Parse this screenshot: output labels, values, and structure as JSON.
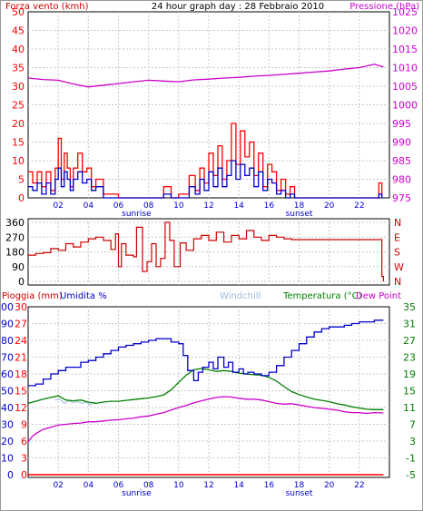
{
  "header": {
    "wind_label": "Forza vento (kmh)",
    "title": "24 hour graph day : 28 Febbraio 2010",
    "pressure_label": "Pressione (hPa)"
  },
  "colors": {
    "frame": "#000000",
    "plot_bg": "#ffffff",
    "grid": "#c8c8c8",
    "wind_gust": "#ff0000",
    "wind_avg": "#0000cc",
    "pressure": "#cc00cc",
    "direction": "#cc0000",
    "humidity": "#0000cc",
    "temperature": "#008000",
    "dew_point": "#cc00cc",
    "rain": "#ff0000",
    "windchill": "#99bbdd"
  },
  "chart_data": [
    {
      "type": "line",
      "title": "24 hour graph day : 28 Febbraio 2010",
      "ylabel": "Forza vento (kmh)",
      "y2label": "Pressione (hPa)",
      "x_ticks": [
        "02",
        "04",
        "06",
        "08",
        "10",
        "12",
        "14",
        "16",
        "18",
        "20",
        "22"
      ],
      "x_annotations": [
        "sunrise",
        "sunset"
      ],
      "sunrise_hour": 7.2,
      "sunset_hour": 18.0,
      "ylim": [
        0,
        50
      ],
      "y_ticks": [
        "0",
        "5",
        "10",
        "15",
        "20",
        "25",
        "30",
        "35",
        "40",
        "45",
        "50"
      ],
      "y2lim": [
        975,
        1025
      ],
      "y2_ticks": [
        "975",
        "980",
        "985",
        "990",
        "995",
        "1000",
        "1005",
        "1010",
        "1015",
        "1020",
        "1025"
      ],
      "series": [
        {
          "id": "gust",
          "axis": "left",
          "style": "step",
          "x": [
            0,
            0.3,
            0.6,
            0.9,
            1.2,
            1.5,
            1.8,
            2.0,
            2.2,
            2.4,
            2.6,
            2.8,
            3.0,
            3.3,
            3.6,
            3.9,
            4.2,
            4.5,
            5.0,
            6,
            7,
            8,
            9.0,
            9.5,
            10,
            10.7,
            11.1,
            11.4,
            11.7,
            12.0,
            12.3,
            12.6,
            12.9,
            13.2,
            13.5,
            13.8,
            14.1,
            14.4,
            14.7,
            15.0,
            15.3,
            15.6,
            15.9,
            16.2,
            16.5,
            16.8,
            17.1,
            17.4,
            17.7,
            18,
            19,
            20,
            21,
            22,
            23,
            23.3,
            23.5
          ],
          "y": [
            7,
            4,
            7,
            3,
            7,
            2,
            8,
            16,
            5,
            12,
            8,
            3,
            8,
            12,
            7,
            8,
            3,
            5,
            1,
            0,
            0,
            0,
            3,
            0,
            1,
            6,
            2,
            8,
            4,
            12,
            6,
            14,
            5,
            10,
            20,
            9,
            18,
            11,
            15,
            6,
            12,
            3,
            9,
            7,
            2,
            5,
            1,
            3,
            0,
            0,
            0,
            0,
            0,
            0,
            0,
            4,
            0
          ]
        },
        {
          "id": "average",
          "axis": "left",
          "style": "step",
          "x": [
            0,
            0.3,
            0.6,
            0.9,
            1.2,
            1.5,
            1.8,
            2.0,
            2.2,
            2.4,
            2.6,
            2.8,
            3.0,
            3.3,
            3.6,
            3.9,
            4.2,
            4.5,
            5.0,
            6,
            7,
            8,
            9.0,
            9.5,
            10,
            10.7,
            11.1,
            11.4,
            11.7,
            12.0,
            12.3,
            12.6,
            12.9,
            13.2,
            13.5,
            13.8,
            14.1,
            14.4,
            14.7,
            15.0,
            15.3,
            15.6,
            15.9,
            16.2,
            16.5,
            16.8,
            17.1,
            17.4,
            17.7,
            18,
            19,
            20,
            21,
            22,
            23,
            23.3,
            23.5
          ],
          "y": [
            3,
            2,
            4,
            1,
            4,
            1,
            5,
            8,
            3,
            7,
            5,
            2,
            5,
            7,
            4,
            5,
            2,
            3,
            0,
            0,
            0,
            0,
            1,
            0,
            0,
            3,
            1,
            5,
            2,
            7,
            3,
            8,
            3,
            6,
            10,
            5,
            9,
            6,
            8,
            3,
            7,
            2,
            5,
            4,
            1,
            2,
            0,
            1,
            0,
            0,
            0,
            0,
            0,
            0,
            0,
            1,
            0
          ]
        },
        {
          "id": "pressure",
          "axis": "right",
          "x": [
            0,
            1,
            2,
            3,
            4,
            5,
            6,
            7,
            8,
            9,
            10,
            11,
            12,
            13,
            14,
            15,
            16,
            17,
            18,
            19,
            20,
            21,
            22,
            23,
            23.6
          ],
          "y": [
            1007.2,
            1006.8,
            1006.6,
            1005.6,
            1004.8,
            1005.3,
            1005.7,
            1006.2,
            1006.6,
            1006.4,
            1006.2,
            1006.7,
            1006.9,
            1007.2,
            1007.4,
            1007.7,
            1007.9,
            1008.2,
            1008.5,
            1008.8,
            1009.1,
            1009.6,
            1010.0,
            1010.9,
            1010.2
          ]
        }
      ]
    },
    {
      "type": "line",
      "ylim": [
        0,
        360
      ],
      "y_ticks": [
        "0",
        "90",
        "180",
        "270",
        "360"
      ],
      "y2_ticks": [
        "N",
        "W",
        "S",
        "E",
        "N"
      ],
      "series": [
        {
          "id": "wind_direction",
          "style": "step",
          "x": [
            0,
            0.5,
            1,
            1.5,
            2,
            2.5,
            3,
            3.5,
            4,
            4.5,
            5,
            5.5,
            5.8,
            6.0,
            6.2,
            6.5,
            7.0,
            7.2,
            7.6,
            7.9,
            8.2,
            8.5,
            8.8,
            9.1,
            9.4,
            9.7,
            10.1,
            10.5,
            11,
            11.5,
            12,
            12.5,
            13,
            13.5,
            14,
            14.5,
            15,
            15.5,
            16,
            16.5,
            17,
            17.5,
            18,
            19,
            20,
            21,
            22,
            23,
            23.5,
            23.6
          ],
          "y": [
            160,
            170,
            175,
            200,
            190,
            230,
            210,
            240,
            260,
            270,
            250,
            195,
            290,
            90,
            230,
            160,
            150,
            330,
            60,
            120,
            230,
            90,
            140,
            360,
            250,
            90,
            235,
            190,
            260,
            280,
            250,
            300,
            240,
            280,
            260,
            310,
            270,
            250,
            280,
            270,
            260,
            255,
            255,
            255,
            255,
            255,
            255,
            255,
            30,
            0
          ]
        }
      ]
    },
    {
      "type": "line",
      "ylabel": "Pioggia (mm)",
      "ylabel2": "Umidita %",
      "center_label": "Windchill",
      "y2label": "Temperatura (°C)",
      "y2label2": "Dew Point",
      "x_ticks": [
        "02",
        "04",
        "06",
        "08",
        "10",
        "12",
        "14",
        "16",
        "18",
        "20",
        "22"
      ],
      "x_annotations": [
        "sunrise",
        "sunset"
      ],
      "humidity_ylim": [
        0,
        100
      ],
      "humidity_ticks": [
        "0",
        "10",
        "20",
        "30",
        "40",
        "50",
        "60",
        "70",
        "80",
        "90",
        "100"
      ],
      "rain_ylim": [
        0,
        30
      ],
      "rain_ticks": [
        "0",
        "3",
        "6",
        "9",
        "12",
        "15",
        "18",
        "21",
        "24",
        "27",
        "30"
      ],
      "temp_ylim": [
        -5,
        35
      ],
      "temp_ticks": [
        "-5",
        "-1",
        "3",
        "7",
        "11",
        "15",
        "19",
        "23",
        "27",
        "31",
        "35"
      ],
      "series": [
        {
          "id": "humidity",
          "axis": "humidity",
          "style": "step",
          "x": [
            0,
            0.5,
            1,
            1.5,
            2,
            2.5,
            3,
            3.5,
            4,
            4.5,
            5,
            5.5,
            6,
            6.5,
            7,
            7.5,
            8,
            8.5,
            9,
            9.5,
            10,
            10.3,
            10.6,
            11,
            11.3,
            11.6,
            12,
            12.3,
            12.6,
            13,
            13.3,
            13.6,
            14,
            14.3,
            14.6,
            15,
            15.5,
            16,
            16.5,
            17,
            17.5,
            18,
            18.5,
            19,
            19.5,
            20,
            20.5,
            21,
            21.5,
            22,
            22.5,
            23,
            23.6
          ],
          "y": [
            53,
            54,
            57,
            60,
            62,
            64,
            64,
            67,
            68,
            70,
            72,
            74,
            76,
            77,
            78,
            79,
            80,
            81,
            81,
            79,
            78,
            71,
            62,
            56,
            61,
            64,
            67,
            63,
            70,
            64,
            67,
            61,
            63,
            60,
            61,
            60,
            59,
            61,
            65,
            70,
            74,
            78,
            82,
            85,
            87,
            88,
            88,
            89,
            90,
            91,
            91,
            92,
            92
          ]
        },
        {
          "id": "temperature",
          "axis": "temp",
          "x": [
            0,
            0.5,
            1,
            1.5,
            2,
            2.5,
            3,
            3.5,
            4,
            4.5,
            5,
            5.5,
            6,
            6.5,
            7,
            7.5,
            8,
            8.5,
            9,
            9.5,
            10,
            10.5,
            11,
            11.5,
            12,
            12.5,
            13,
            13.5,
            14,
            14.5,
            15,
            15.5,
            16,
            16.5,
            17,
            17.5,
            18,
            18.5,
            19,
            19.5,
            20,
            20.5,
            21,
            21.5,
            22,
            22.5,
            23,
            23.6
          ],
          "y": [
            12.0,
            12.5,
            13.0,
            13.4,
            13.8,
            12.8,
            12.6,
            12.8,
            12.3,
            12.0,
            12.3,
            12.5,
            12.5,
            12.7,
            12.9,
            13.1,
            13.3,
            13.6,
            14.0,
            15.2,
            17.0,
            18.7,
            20.0,
            20.3,
            20.0,
            19.6,
            19.8,
            19.6,
            19.2,
            19.0,
            18.8,
            18.7,
            18.2,
            17.3,
            16.0,
            14.8,
            14.1,
            13.5,
            13.0,
            12.7,
            12.4,
            11.9,
            11.6,
            11.2,
            10.9,
            10.6,
            10.5,
            10.5
          ]
        },
        {
          "id": "dew_point",
          "axis": "temp",
          "x": [
            0,
            0.3,
            0.6,
            1,
            1.5,
            2,
            2.5,
            3,
            3.5,
            4,
            4.5,
            5,
            5.5,
            6,
            6.5,
            7,
            7.5,
            8,
            8.5,
            9,
            9.5,
            10,
            10.5,
            11,
            11.5,
            12,
            12.5,
            13,
            13.5,
            14,
            14.5,
            15,
            15.5,
            16,
            16.5,
            17,
            17.5,
            18,
            18.5,
            19,
            19.5,
            20,
            20.5,
            21,
            21.5,
            22,
            22.5,
            23,
            23.6
          ],
          "y": [
            2.8,
            4.2,
            5.0,
            5.8,
            6.3,
            6.8,
            7.0,
            7.2,
            7.3,
            7.6,
            7.6,
            7.8,
            8.0,
            8.1,
            8.3,
            8.5,
            8.8,
            9.0,
            9.4,
            9.8,
            10.4,
            11.0,
            11.5,
            12.1,
            12.6,
            13.0,
            13.4,
            13.6,
            13.5,
            13.2,
            13.0,
            13.0,
            12.8,
            12.4,
            12.0,
            11.8,
            11.9,
            11.6,
            11.3,
            11.0,
            10.8,
            10.6,
            10.4,
            10.0,
            9.8,
            9.8,
            9.6,
            9.8,
            9.7
          ]
        },
        {
          "id": "windchill",
          "axis": "temp",
          "x": [
            1.8,
            2.1,
            2.4,
            2.7,
            3.0,
            3.3,
            3.6,
            3.9,
            4.1,
            4.3,
            4.5
          ],
          "y": [
            12.8,
            13.0,
            12.0,
            12.6,
            12.2,
            12.4,
            12.0,
            12.3,
            11.6,
            12.1,
            12.2
          ]
        },
        {
          "id": "rain",
          "axis": "rain",
          "x": [
            0,
            23.6
          ],
          "y": [
            0,
            0
          ]
        }
      ]
    }
  ]
}
